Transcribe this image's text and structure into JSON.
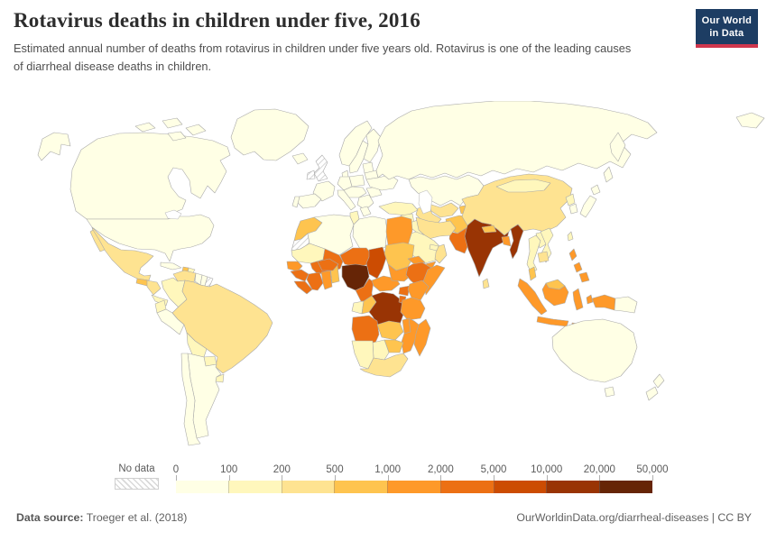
{
  "header": {
    "title": "Rotavirus deaths in children under five, 2016",
    "subtitle": "Estimated annual number of deaths from rotavirus in children under five years old. Rotavirus is one of the leading causes of diarrheal disease deaths in children."
  },
  "logo": {
    "line1": "Our World",
    "line2": "in Data",
    "bg_color": "#1d3d63",
    "stripe_color": "#d0374d"
  },
  "legend": {
    "no_data_label": "No data"
  },
  "footer": {
    "source_label": "Data source:",
    "source_value": " Troeger et al. (2018)",
    "right_text": "OurWorldinData.org/diarrheal-diseases | CC BY"
  },
  "map": {
    "border_color": "#a9a9a9",
    "water_color": "#ffffff"
  },
  "chart_data": {
    "type": "choropleth",
    "title": "Rotavirus deaths in children under five, 2016",
    "unit": "deaths",
    "legend_position": "bottom",
    "bin_edges": [
      "0",
      "100",
      "200",
      "500",
      "1,000",
      "2,000",
      "5,000",
      "10,000",
      "20,000",
      "50,000"
    ],
    "bin_labels": [
      "0-100",
      "100-200",
      "200-500",
      "500-1,000",
      "1,000-2,000",
      "2,000-5,000",
      "5,000-10,000",
      "10,000-20,000",
      "20,000-50,000"
    ],
    "palette": [
      "#ffffe5",
      "#fff7bc",
      "#fee391",
      "#fec44f",
      "#fe9929",
      "#ec7014",
      "#cc4c02",
      "#993404",
      "#662506"
    ],
    "no_data_color": "hatched",
    "countries": {
      "canada": 0,
      "united-states": 0,
      "greenland": 0,
      "iceland": 0,
      "mexico": 2,
      "guatemala": 3,
      "honduras-nicaragua": 2,
      "costa-rica-panama": 1,
      "cuba": 0,
      "haiti": 3,
      "dominican-republic": 1,
      "colombia": 1,
      "venezuela": 2,
      "guyana": 0,
      "suriname": 0,
      "french-guiana": null,
      "ecuador": 1,
      "peru": 0,
      "brazil": 2,
      "bolivia": 1,
      "paraguay": 1,
      "uruguay": 1,
      "chile": 0,
      "argentina": 0,
      "united-kingdom": null,
      "ireland": null,
      "norway": 0,
      "sweden": 0,
      "finland": 0,
      "denmark": 0,
      "baltics": 0,
      "belarus": 0,
      "poland": 0,
      "germany": 0,
      "france": 0,
      "spain": 0,
      "portugal": 0,
      "italy": 0,
      "central-europe": 0,
      "balkans": 0,
      "greece": 0,
      "romania": 0,
      "ukraine": 0,
      "russia": 0,
      "morocco": 3,
      "western-sahara": null,
      "algeria": 0,
      "tunisia": 1,
      "libya": 0,
      "egypt": 4,
      "mauritania": 1,
      "mali": 5,
      "senegal": 4,
      "guinea": 5,
      "sierra-leone-liberia": 5,
      "cote-divoire": 5,
      "ghana": 4,
      "togo-benin": 3,
      "burkina-faso": 5,
      "niger": 5,
      "nigeria": 8,
      "chad": 6,
      "cameroon": 5,
      "central-african-republic": 4,
      "sudan": 3,
      "south-sudan": 4,
      "eritrea": 4,
      "ethiopia": 5,
      "somalia": 4,
      "gabon": 1,
      "congo": 3,
      "dr-congo": 7,
      "uganda": 5,
      "kenya": 4,
      "rwanda-burundi": 5,
      "tanzania": 4,
      "angola": 5,
      "zambia": 3,
      "malawi": 4,
      "mozambique": 4,
      "zimbabwe": 3,
      "botswana": 1,
      "namibia": 1,
      "south-africa": 2,
      "madagascar": 4,
      "turkey": 1,
      "syria": 1,
      "israel-jordan": 1,
      "iraq": 1,
      "iran": 2,
      "saudi-arabia": 1,
      "yemen": 4,
      "oman": 2,
      "uae-qatar": 1,
      "kazakhstan": 0,
      "uzbekistan": 2,
      "turkmenistan": 2,
      "kyrgyzstan": 3,
      "tajikistan": 3,
      "afghanistan": 3,
      "pakistan": 5,
      "india": 7,
      "nepal": 3,
      "bangladesh": 4,
      "myanmar": 7,
      "sri-lanka": 2,
      "china": 2,
      "mongolia": 1,
      "north-korea": 1,
      "south-korea": 0,
      "japan": 0,
      "taiwan": 1,
      "laos": 1,
      "vietnam": 1,
      "thailand": 1,
      "cambodia": 2,
      "malaysia": 3,
      "indonesia": 4,
      "philippines": 4,
      "papua-new-guinea": 0,
      "australia": 0,
      "new-zealand": 0
    }
  }
}
